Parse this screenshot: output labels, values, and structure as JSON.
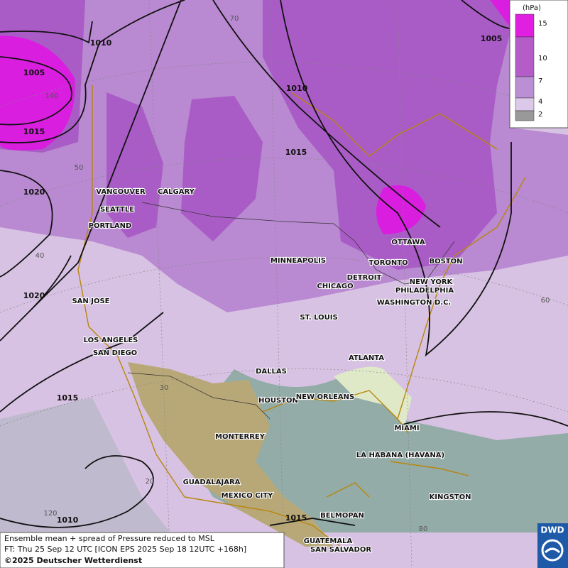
{
  "cities": [
    "VANCOUVER",
    "CALGARY",
    "SEATTLE",
    "PORTLAND",
    "MINNEAPOLIS",
    "OTTAWA",
    "TORONTO",
    "BOSTON",
    "DETROIT",
    "NEW YORK",
    "PHILADELPHIA",
    "CHICAGO",
    "WASHINGTON D.C.",
    "SAN JOSE",
    "ST. LOUIS",
    "LOS ANGELES",
    "SAN DIEGO",
    "ATLANTA",
    "DALLAS",
    "HOUSTON",
    "NEW ORLEANS",
    "MIAMI",
    "MONTERREY",
    "LA HABANA (HAVANA)",
    "GUADALAJARA",
    "MEXICO CITY",
    "KINGSTON",
    "BELMOPAN",
    "GUATEMALA",
    "SAN SALVADOR"
  ],
  "isobars": [
    1010,
    1005,
    1015,
    1020,
    1020,
    1015,
    1010,
    1010,
    1015,
    1005,
    1015
  ],
  "graticule": [
    70,
    140,
    50,
    40,
    30,
    20,
    120,
    80,
    60
  ],
  "legend": {
    "unit": "(hPa)",
    "levels": [
      15,
      10,
      7,
      4,
      2
    ]
  },
  "footer": [
    "Ensemble mean + spread of Pressure reduced to MSL",
    "FT: Thu 25 Sep 12 UTC [ICON EPS 2025 Sep 18 12UTC +168h]",
    "©2025 Deutscher Wetterdienst"
  ],
  "logo": "DWD"
}
